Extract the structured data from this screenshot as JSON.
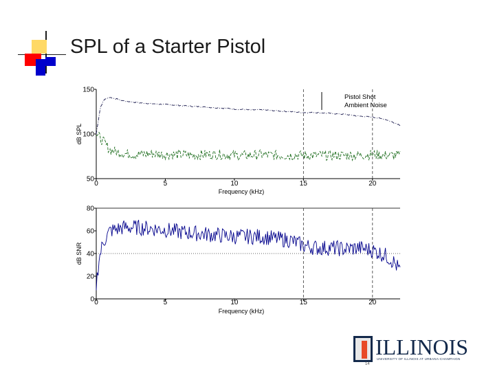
{
  "slide": {
    "title": "SPL of a Starter Pistol",
    "slide_number": "14",
    "logo": {
      "word": "ILLINOIS",
      "subtitle": "UNIVERSITY OF ILLINOIS AT URBANA-CHAMPAIGN"
    },
    "colors": {
      "title_bar_blue": "#0000cc",
      "title_bar_red": "#ff0000",
      "title_bar_yellow": "#ffd966",
      "illinois_blue": "#13294b",
      "illinois_orange": "#e84a27"
    }
  },
  "chart_data": [
    {
      "type": "line",
      "title": "",
      "xlabel": "Frequency (kHz)",
      "ylabel": "dB SPL",
      "xlim": [
        0,
        22
      ],
      "ylim": [
        50,
        150
      ],
      "xticks": [
        0,
        5,
        10,
        15,
        20
      ],
      "yticks": [
        50,
        100,
        150
      ],
      "xtick_labels": [
        "0",
        "5",
        "10",
        "15",
        "20"
      ],
      "ytick_labels": [
        "50",
        "100",
        "150"
      ],
      "vlines": [
        15,
        20
      ],
      "legend": {
        "placement": "top-right",
        "entries": [
          "Pistol Shot",
          "Ambient Noise"
        ]
      },
      "series": [
        {
          "name": "Pistol Shot",
          "color": "#1a1a4d",
          "style": "dashdot",
          "x": [
            0,
            0.3,
            0.6,
            1,
            2,
            3,
            4,
            5,
            6,
            7,
            8,
            9,
            10,
            11,
            12,
            13,
            14,
            15,
            16,
            17,
            18,
            19,
            20,
            21,
            22
          ],
          "y": [
            100,
            130,
            139,
            141,
            137,
            135,
            134,
            133,
            132,
            131,
            130,
            129,
            128,
            127,
            127,
            126,
            125,
            124,
            124,
            123,
            122,
            120,
            119,
            116,
            110
          ]
        },
        {
          "name": "Ambient Noise",
          "color": "#1a6b1a",
          "style": "dashed",
          "x": [
            0,
            0.3,
            0.6,
            1,
            2,
            3,
            4,
            5,
            6,
            7,
            8,
            9,
            10,
            11,
            12,
            13,
            14,
            15,
            16,
            17,
            18,
            19,
            20,
            21,
            22
          ],
          "y": [
            100,
            95,
            90,
            82,
            78,
            77,
            78,
            77,
            77,
            76,
            77,
            77,
            76,
            76,
            77,
            76,
            76,
            76,
            76,
            76,
            76,
            76,
            77,
            76,
            76
          ]
        }
      ]
    },
    {
      "type": "line",
      "title": "",
      "xlabel": "Frequency (kHz)",
      "ylabel": "dB SNR",
      "xlim": [
        0,
        22
      ],
      "ylim": [
        0,
        80
      ],
      "xticks": [
        0,
        5,
        10,
        15,
        20
      ],
      "yticks": [
        0,
        20,
        40,
        60,
        80
      ],
      "xtick_labels": [
        "0",
        "5",
        "10",
        "15",
        "20"
      ],
      "ytick_labels": [
        "0",
        "20",
        "40",
        "60",
        "80"
      ],
      "hlines": [
        40,
        80
      ],
      "vlines": [
        15,
        20
      ],
      "series": [
        {
          "name": "",
          "color": "#00008b",
          "style": "solid",
          "x": [
            0,
            0.2,
            0.5,
            1,
            2,
            3,
            4,
            5,
            6,
            7,
            8,
            9,
            10,
            11,
            12,
            13,
            14,
            15,
            16,
            17,
            18,
            19,
            20,
            21,
            21.5,
            22
          ],
          "y": [
            12,
            35,
            50,
            60,
            63,
            63,
            62,
            61,
            59,
            58,
            57,
            56,
            55,
            55,
            55,
            53,
            52,
            47,
            45,
            45,
            44,
            45,
            43,
            38,
            33,
            25
          ]
        }
      ]
    }
  ]
}
